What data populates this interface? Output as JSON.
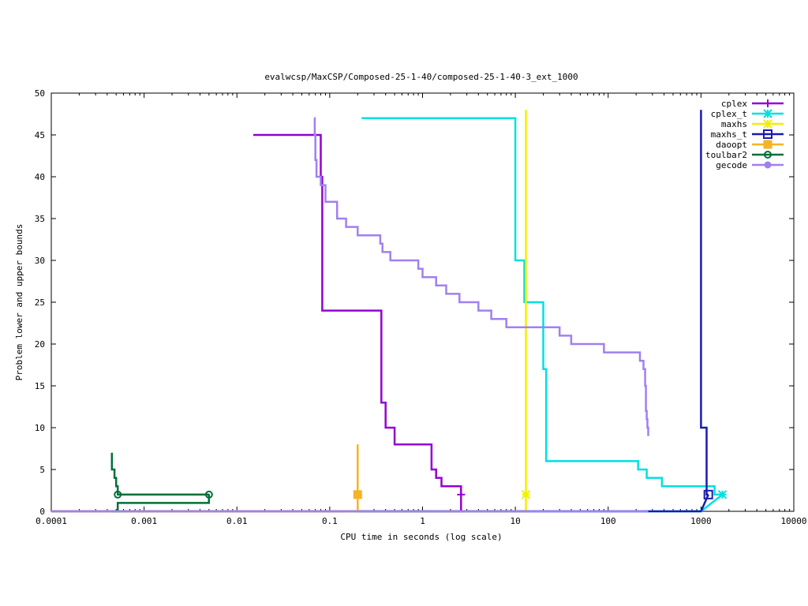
{
  "chart_data": {
    "type": "line",
    "title": "evalwcsp/MaxCSP/Composed-25-1-40/composed-25-1-40-3_ext_1000",
    "xlabel": "CPU time in seconds (log scale)",
    "ylabel": "Problem lower and upper bounds",
    "x_scale": "log",
    "xlim": [
      0.0001,
      10000
    ],
    "ylim": [
      0,
      50
    ],
    "x_ticks": [
      0.0001,
      0.001,
      0.01,
      0.1,
      1,
      10,
      100,
      1000,
      10000
    ],
    "x_tick_labels": [
      "0.0001",
      "0.001",
      "0.01",
      "0.1",
      "1",
      "10",
      "100",
      "1000",
      "10000"
    ],
    "y_ticks": [
      0,
      5,
      10,
      15,
      20,
      25,
      30,
      35,
      40,
      45,
      50
    ],
    "y_tick_labels": [
      "0",
      "5",
      "10",
      "15",
      "20",
      "25",
      "30",
      "35",
      "40",
      "45",
      "50"
    ],
    "grid": false,
    "legend_position": "top-right",
    "series": [
      {
        "name": "cplex",
        "color": "#9400d3",
        "marker": "plus",
        "upper": [
          [
            0.015,
            45
          ],
          [
            0.08,
            45
          ],
          [
            0.08,
            40
          ],
          [
            0.083,
            40
          ],
          [
            0.083,
            24
          ],
          [
            0.36,
            24
          ],
          [
            0.36,
            13
          ],
          [
            0.4,
            13
          ],
          [
            0.4,
            10
          ],
          [
            0.5,
            10
          ],
          [
            0.5,
            8
          ],
          [
            1.25,
            8
          ],
          [
            1.25,
            5
          ],
          [
            1.4,
            5
          ],
          [
            1.4,
            4
          ],
          [
            1.6,
            4
          ],
          [
            1.6,
            3
          ],
          [
            2.6,
            3
          ],
          [
            2.6,
            2
          ]
        ],
        "lower": [
          [
            0.0001,
            0
          ],
          [
            2.6,
            0
          ],
          [
            2.6,
            2
          ]
        ],
        "markers": [
          [
            2.6,
            2
          ]
        ]
      },
      {
        "name": "cplex_t",
        "color": "#00e0e0",
        "marker": "star",
        "upper": [
          [
            0.22,
            47
          ],
          [
            10,
            47
          ],
          [
            10,
            30
          ],
          [
            12.5,
            30
          ],
          [
            12.5,
            25
          ],
          [
            20,
            25
          ],
          [
            20,
            17
          ],
          [
            21.5,
            17
          ],
          [
            21.5,
            6
          ],
          [
            210,
            6
          ],
          [
            210,
            5
          ],
          [
            260,
            5
          ],
          [
            260,
            4
          ],
          [
            380,
            4
          ],
          [
            380,
            3
          ],
          [
            1400,
            3
          ],
          [
            1400,
            2
          ],
          [
            1700,
            2
          ]
        ],
        "lower": [
          [
            0.0001,
            0
          ],
          [
            1000,
            0
          ],
          [
            1700,
            2
          ]
        ],
        "markers": [
          [
            1700,
            2
          ]
        ]
      },
      {
        "name": "maxhs",
        "color": "#f0f000",
        "marker": "star",
        "upper": [
          [
            13,
            48
          ],
          [
            13,
            2
          ]
        ],
        "lower": [
          [
            0.0001,
            0
          ],
          [
            13,
            0
          ],
          [
            13,
            2
          ]
        ],
        "markers": [
          [
            13,
            2
          ]
        ]
      },
      {
        "name": "maxhs_t",
        "color": "#1a1ab0",
        "marker": "square",
        "upper": [
          [
            1000,
            48
          ],
          [
            1000,
            10
          ],
          [
            1150,
            10
          ],
          [
            1150,
            2
          ],
          [
            1200,
            2
          ]
        ],
        "lower": [
          [
            0.0001,
            0
          ],
          [
            1000,
            0
          ],
          [
            1200,
            2
          ]
        ],
        "markers": [
          [
            1200,
            2
          ]
        ]
      },
      {
        "name": "daoopt",
        "color": "#f5b325",
        "marker": "filled-square",
        "upper": [
          [
            0.2,
            8
          ],
          [
            0.2,
            2
          ]
        ],
        "lower": [
          [
            0.0001,
            0
          ],
          [
            0.2,
            0
          ],
          [
            0.2,
            2
          ]
        ],
        "markers": [
          [
            0.2,
            2
          ]
        ]
      },
      {
        "name": "toulbar2",
        "color": "#00703a",
        "marker": "circle",
        "upper": [
          [
            0.00045,
            7
          ],
          [
            0.00045,
            5
          ],
          [
            0.00048,
            5
          ],
          [
            0.00048,
            4
          ],
          [
            0.0005,
            4
          ],
          [
            0.0005,
            3
          ],
          [
            0.00052,
            3
          ],
          [
            0.00052,
            2
          ],
          [
            0.005,
            2
          ]
        ],
        "lower": [
          [
            0.00045,
            0
          ],
          [
            0.00052,
            0
          ],
          [
            0.00052,
            1
          ],
          [
            0.005,
            1
          ],
          [
            0.005,
            2
          ]
        ],
        "markers": [
          [
            0.00052,
            2
          ],
          [
            0.005,
            2
          ]
        ]
      },
      {
        "name": "gecode",
        "color": "#a080f0",
        "marker": "filled-circle",
        "upper": [
          [
            0.068,
            47
          ],
          [
            0.069,
            47
          ],
          [
            0.069,
            45
          ],
          [
            0.07,
            45
          ],
          [
            0.07,
            42
          ],
          [
            0.072,
            42
          ],
          [
            0.072,
            40
          ],
          [
            0.08,
            40
          ],
          [
            0.08,
            39
          ],
          [
            0.09,
            39
          ],
          [
            0.09,
            37
          ],
          [
            0.12,
            37
          ],
          [
            0.12,
            35
          ],
          [
            0.15,
            35
          ],
          [
            0.15,
            34
          ],
          [
            0.2,
            34
          ],
          [
            0.2,
            33
          ],
          [
            0.35,
            33
          ],
          [
            0.35,
            32
          ],
          [
            0.37,
            32
          ],
          [
            0.37,
            31
          ],
          [
            0.45,
            31
          ],
          [
            0.45,
            30
          ],
          [
            0.9,
            30
          ],
          [
            0.9,
            29
          ],
          [
            1.0,
            29
          ],
          [
            1.0,
            28
          ],
          [
            1.4,
            28
          ],
          [
            1.4,
            27
          ],
          [
            1.8,
            27
          ],
          [
            1.8,
            26
          ],
          [
            2.5,
            26
          ],
          [
            2.5,
            25
          ],
          [
            4.0,
            25
          ],
          [
            4.0,
            24
          ],
          [
            5.5,
            24
          ],
          [
            5.5,
            23
          ],
          [
            8.0,
            23
          ],
          [
            8.0,
            22
          ],
          [
            30,
            22
          ],
          [
            30,
            21
          ],
          [
            40,
            21
          ],
          [
            40,
            20
          ],
          [
            90,
            20
          ],
          [
            90,
            19
          ],
          [
            220,
            19
          ],
          [
            220,
            18
          ],
          [
            240,
            18
          ],
          [
            240,
            17
          ],
          [
            250,
            17
          ],
          [
            250,
            15
          ],
          [
            255,
            15
          ],
          [
            255,
            12
          ],
          [
            260,
            12
          ],
          [
            260,
            11
          ],
          [
            265,
            11
          ],
          [
            265,
            10
          ],
          [
            270,
            10
          ],
          [
            270,
            9
          ]
        ],
        "lower": [
          [
            0.0001,
            0
          ],
          [
            270,
            0
          ]
        ],
        "markers": []
      }
    ]
  }
}
